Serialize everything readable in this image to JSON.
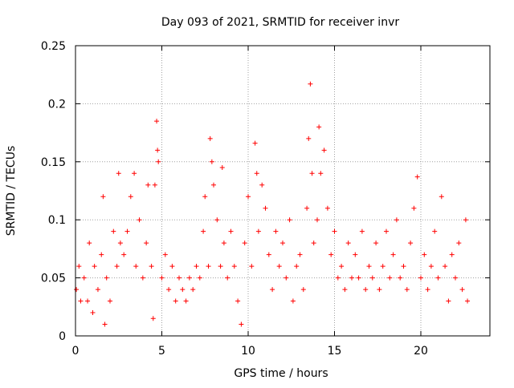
{
  "chart_data": {
    "type": "scatter",
    "title": "Day 093 of 2021, SRMTID for receiver invr",
    "xlabel": "GPS time / hours",
    "ylabel": "SRMTID / TECUs",
    "xlim": [
      0,
      24
    ],
    "ylim": [
      0,
      0.25
    ],
    "x_ticks": [
      0,
      5,
      10,
      15,
      20
    ],
    "x_tick_labels": [
      "0",
      "5",
      "10",
      "15",
      "20"
    ],
    "y_ticks": [
      0,
      0.05,
      0.1,
      0.15,
      0.2,
      0.25
    ],
    "y_tick_labels": [
      "0",
      "0.05",
      "0.1",
      "0.15",
      "0.2",
      "0.25"
    ],
    "grid": true,
    "legend": "none",
    "marker": "+",
    "colors": {
      "points": "#ff0000",
      "grid": "#a0a0a0",
      "axes": "#000000"
    },
    "series": [
      {
        "values": [
          [
            0.05,
            0.04
          ],
          [
            0.2,
            0.06
          ],
          [
            0.3,
            0.03
          ],
          [
            0.5,
            0.05
          ],
          [
            0.7,
            0.03
          ],
          [
            0.8,
            0.08
          ],
          [
            1.0,
            0.02
          ],
          [
            1.1,
            0.06
          ],
          [
            1.3,
            0.04
          ],
          [
            1.5,
            0.07
          ],
          [
            1.6,
            0.12
          ],
          [
            1.7,
            0.01
          ],
          [
            1.8,
            0.05
          ],
          [
            2.0,
            0.03
          ],
          [
            2.2,
            0.09
          ],
          [
            2.4,
            0.06
          ],
          [
            2.5,
            0.14
          ],
          [
            2.6,
            0.08
          ],
          [
            2.8,
            0.07
          ],
          [
            3.0,
            0.09
          ],
          [
            3.2,
            0.12
          ],
          [
            3.4,
            0.14
          ],
          [
            3.5,
            0.06
          ],
          [
            3.7,
            0.1
          ],
          [
            3.9,
            0.05
          ],
          [
            4.1,
            0.08
          ],
          [
            4.2,
            0.13
          ],
          [
            4.4,
            0.06
          ],
          [
            4.5,
            0.015
          ],
          [
            4.6,
            0.13
          ],
          [
            4.7,
            0.185
          ],
          [
            4.75,
            0.16
          ],
          [
            4.8,
            0.15
          ],
          [
            5.0,
            0.05
          ],
          [
            5.2,
            0.07
          ],
          [
            5.4,
            0.04
          ],
          [
            5.6,
            0.06
          ],
          [
            5.8,
            0.03
          ],
          [
            6.0,
            0.05
          ],
          [
            6.2,
            0.04
          ],
          [
            6.4,
            0.03
          ],
          [
            6.6,
            0.05
          ],
          [
            6.8,
            0.04
          ],
          [
            7.0,
            0.06
          ],
          [
            7.2,
            0.05
          ],
          [
            7.4,
            0.09
          ],
          [
            7.5,
            0.12
          ],
          [
            7.7,
            0.06
          ],
          [
            7.8,
            0.17
          ],
          [
            7.9,
            0.15
          ],
          [
            8.0,
            0.13
          ],
          [
            8.2,
            0.1
          ],
          [
            8.4,
            0.06
          ],
          [
            8.5,
            0.145
          ],
          [
            8.6,
            0.08
          ],
          [
            8.8,
            0.05
          ],
          [
            9.0,
            0.09
          ],
          [
            9.2,
            0.06
          ],
          [
            9.4,
            0.03
          ],
          [
            9.6,
            0.01
          ],
          [
            9.8,
            0.08
          ],
          [
            10.0,
            0.12
          ],
          [
            10.2,
            0.06
          ],
          [
            10.4,
            0.166
          ],
          [
            10.5,
            0.14
          ],
          [
            10.6,
            0.09
          ],
          [
            10.8,
            0.13
          ],
          [
            11.0,
            0.11
          ],
          [
            11.2,
            0.07
          ],
          [
            11.4,
            0.04
          ],
          [
            11.6,
            0.09
          ],
          [
            11.8,
            0.06
          ],
          [
            12.0,
            0.08
          ],
          [
            12.2,
            0.05
          ],
          [
            12.4,
            0.1
          ],
          [
            12.6,
            0.03
          ],
          [
            12.8,
            0.06
          ],
          [
            13.0,
            0.07
          ],
          [
            13.2,
            0.04
          ],
          [
            13.4,
            0.11
          ],
          [
            13.5,
            0.17
          ],
          [
            13.6,
            0.217
          ],
          [
            13.7,
            0.14
          ],
          [
            13.8,
            0.08
          ],
          [
            14.0,
            0.1
          ],
          [
            14.1,
            0.18
          ],
          [
            14.2,
            0.14
          ],
          [
            14.4,
            0.16
          ],
          [
            14.6,
            0.11
          ],
          [
            14.8,
            0.07
          ],
          [
            15.0,
            0.09
          ],
          [
            15.2,
            0.05
          ],
          [
            15.4,
            0.06
          ],
          [
            15.6,
            0.04
          ],
          [
            15.8,
            0.08
          ],
          [
            16.0,
            0.05
          ],
          [
            16.2,
            0.07
          ],
          [
            16.4,
            0.05
          ],
          [
            16.6,
            0.09
          ],
          [
            16.8,
            0.04
          ],
          [
            17.0,
            0.06
          ],
          [
            17.2,
            0.05
          ],
          [
            17.4,
            0.08
          ],
          [
            17.6,
            0.04
          ],
          [
            17.8,
            0.06
          ],
          [
            18.0,
            0.09
          ],
          [
            18.2,
            0.05
          ],
          [
            18.4,
            0.07
          ],
          [
            18.6,
            0.1
          ],
          [
            18.8,
            0.05
          ],
          [
            19.0,
            0.06
          ],
          [
            19.2,
            0.04
          ],
          [
            19.4,
            0.08
          ],
          [
            19.6,
            0.11
          ],
          [
            19.8,
            0.137
          ],
          [
            20.0,
            0.05
          ],
          [
            20.2,
            0.07
          ],
          [
            20.4,
            0.04
          ],
          [
            20.6,
            0.06
          ],
          [
            20.8,
            0.09
          ],
          [
            21.0,
            0.05
          ],
          [
            21.2,
            0.12
          ],
          [
            21.4,
            0.06
          ],
          [
            21.6,
            0.03
          ],
          [
            21.8,
            0.07
          ],
          [
            22.0,
            0.05
          ],
          [
            22.2,
            0.08
          ],
          [
            22.4,
            0.04
          ],
          [
            22.6,
            0.1
          ],
          [
            22.7,
            0.03
          ]
        ]
      }
    ]
  }
}
